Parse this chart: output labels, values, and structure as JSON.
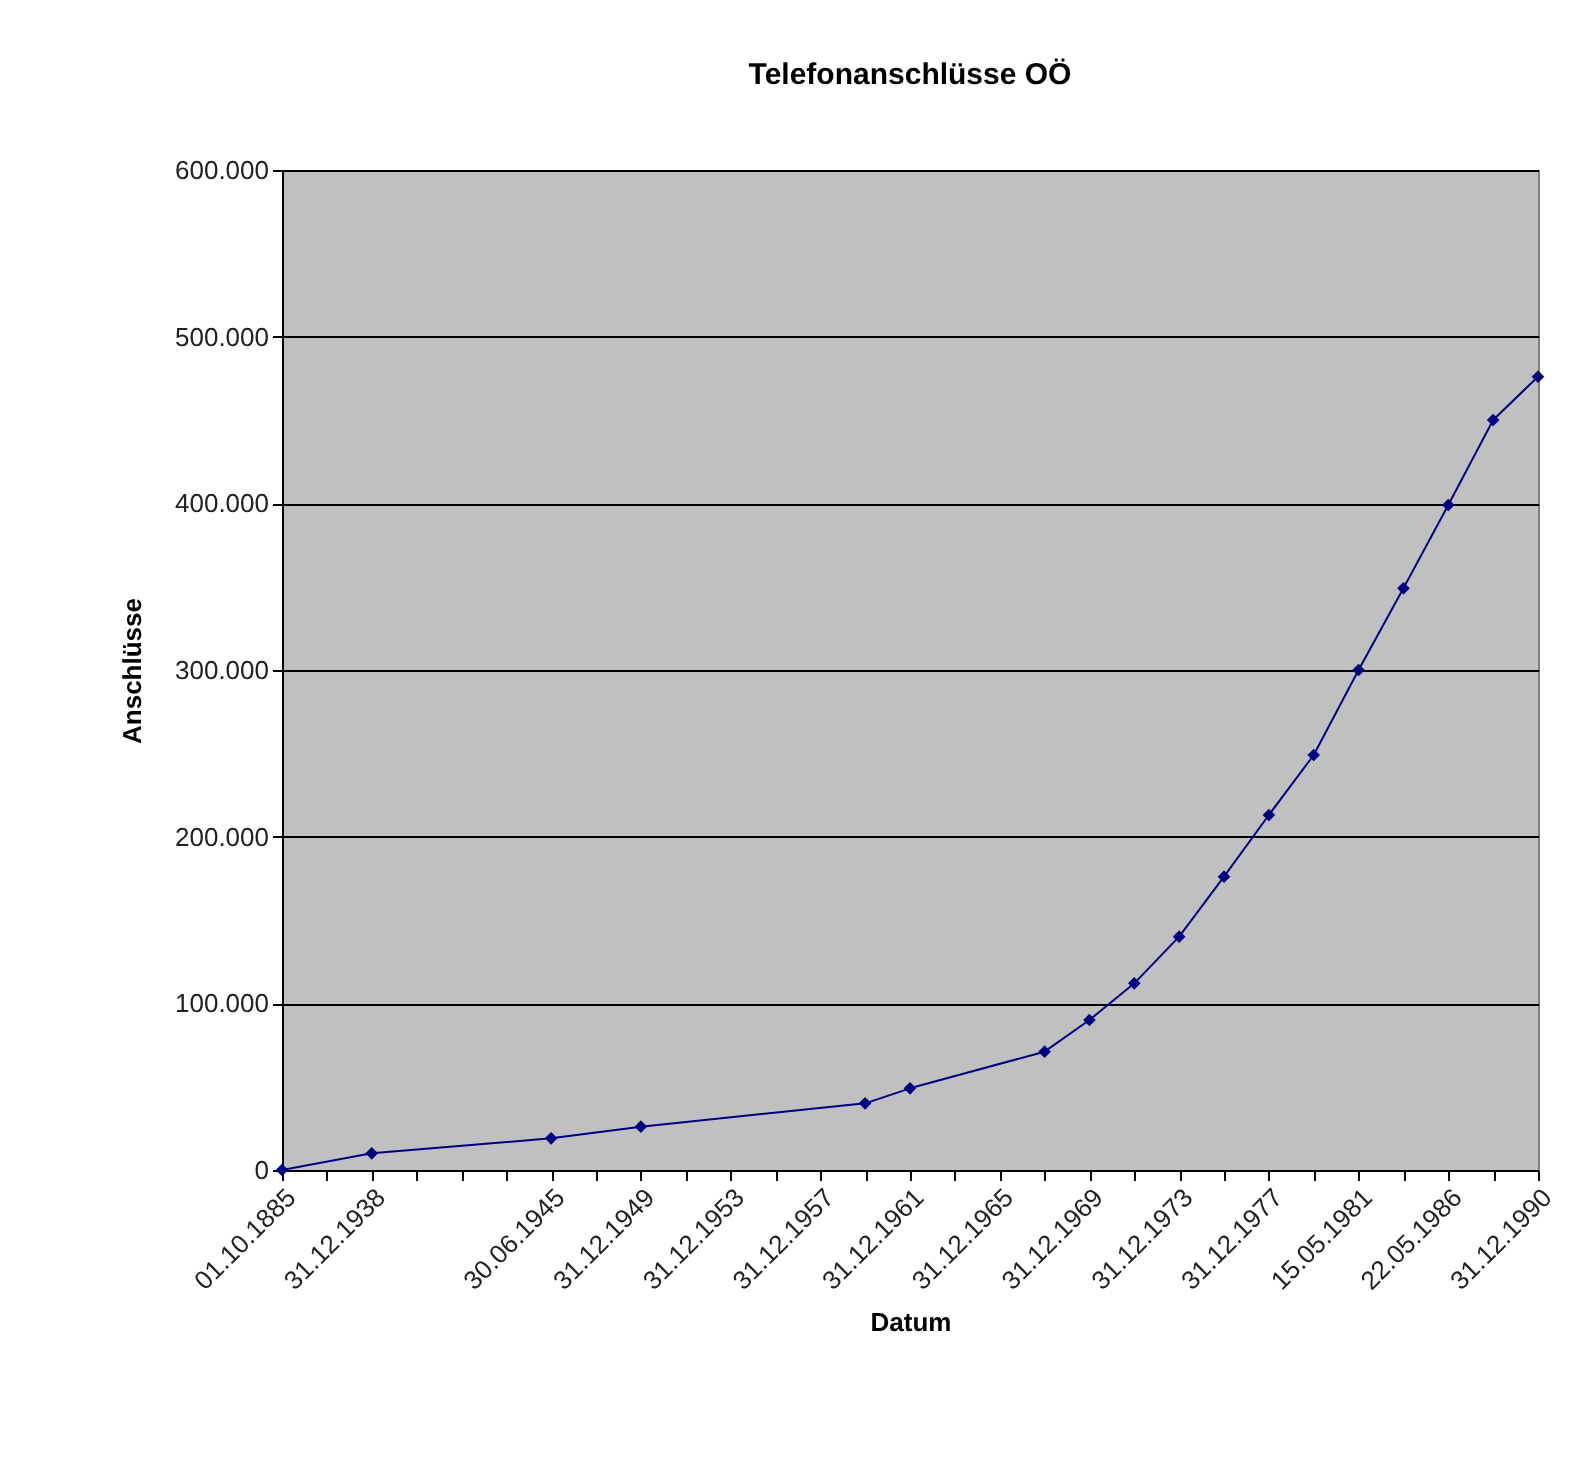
{
  "chart_data": {
    "type": "line",
    "title": "Telefonanschlüsse OÖ",
    "xlabel": "Datum",
    "ylabel": "Anschlüsse",
    "categories": [
      "01.10.1885",
      null,
      "31.12.1938",
      null,
      null,
      null,
      "30.06.1945",
      null,
      "31.12.1949",
      null,
      "31.12.1953",
      null,
      "31.12.1957",
      null,
      "31.12.1961",
      null,
      "31.12.1965",
      null,
      "31.12.1969",
      null,
      "31.12.1973",
      null,
      "31.12.1977",
      null,
      "15.05.1981",
      null,
      "22.05.1986",
      null,
      "31.12.1990"
    ],
    "series": [
      {
        "color": "#000080",
        "values": [
          0,
          null,
          10000,
          null,
          null,
          null,
          19000,
          null,
          26000,
          null,
          null,
          null,
          null,
          40000,
          49000,
          null,
          null,
          71000,
          90000,
          112000,
          140000,
          176000,
          213000,
          249000,
          300000,
          349000,
          399000,
          450000,
          476000
        ]
      }
    ],
    "ylim": [
      0,
      600000
    ],
    "yticks": [
      0,
      {
        "value": 100000,
        "label": "100.000"
      },
      {
        "value": 200000,
        "label": "200.000"
      },
      {
        "value": 300000,
        "label": "300.000"
      },
      {
        "value": 400000,
        "label": "400.000"
      },
      {
        "value": 500000,
        "label": "500.000"
      },
      {
        "value": 600000,
        "label": "600.000"
      }
    ],
    "grid": "y",
    "marker": "diamond",
    "line_style": "solid"
  }
}
